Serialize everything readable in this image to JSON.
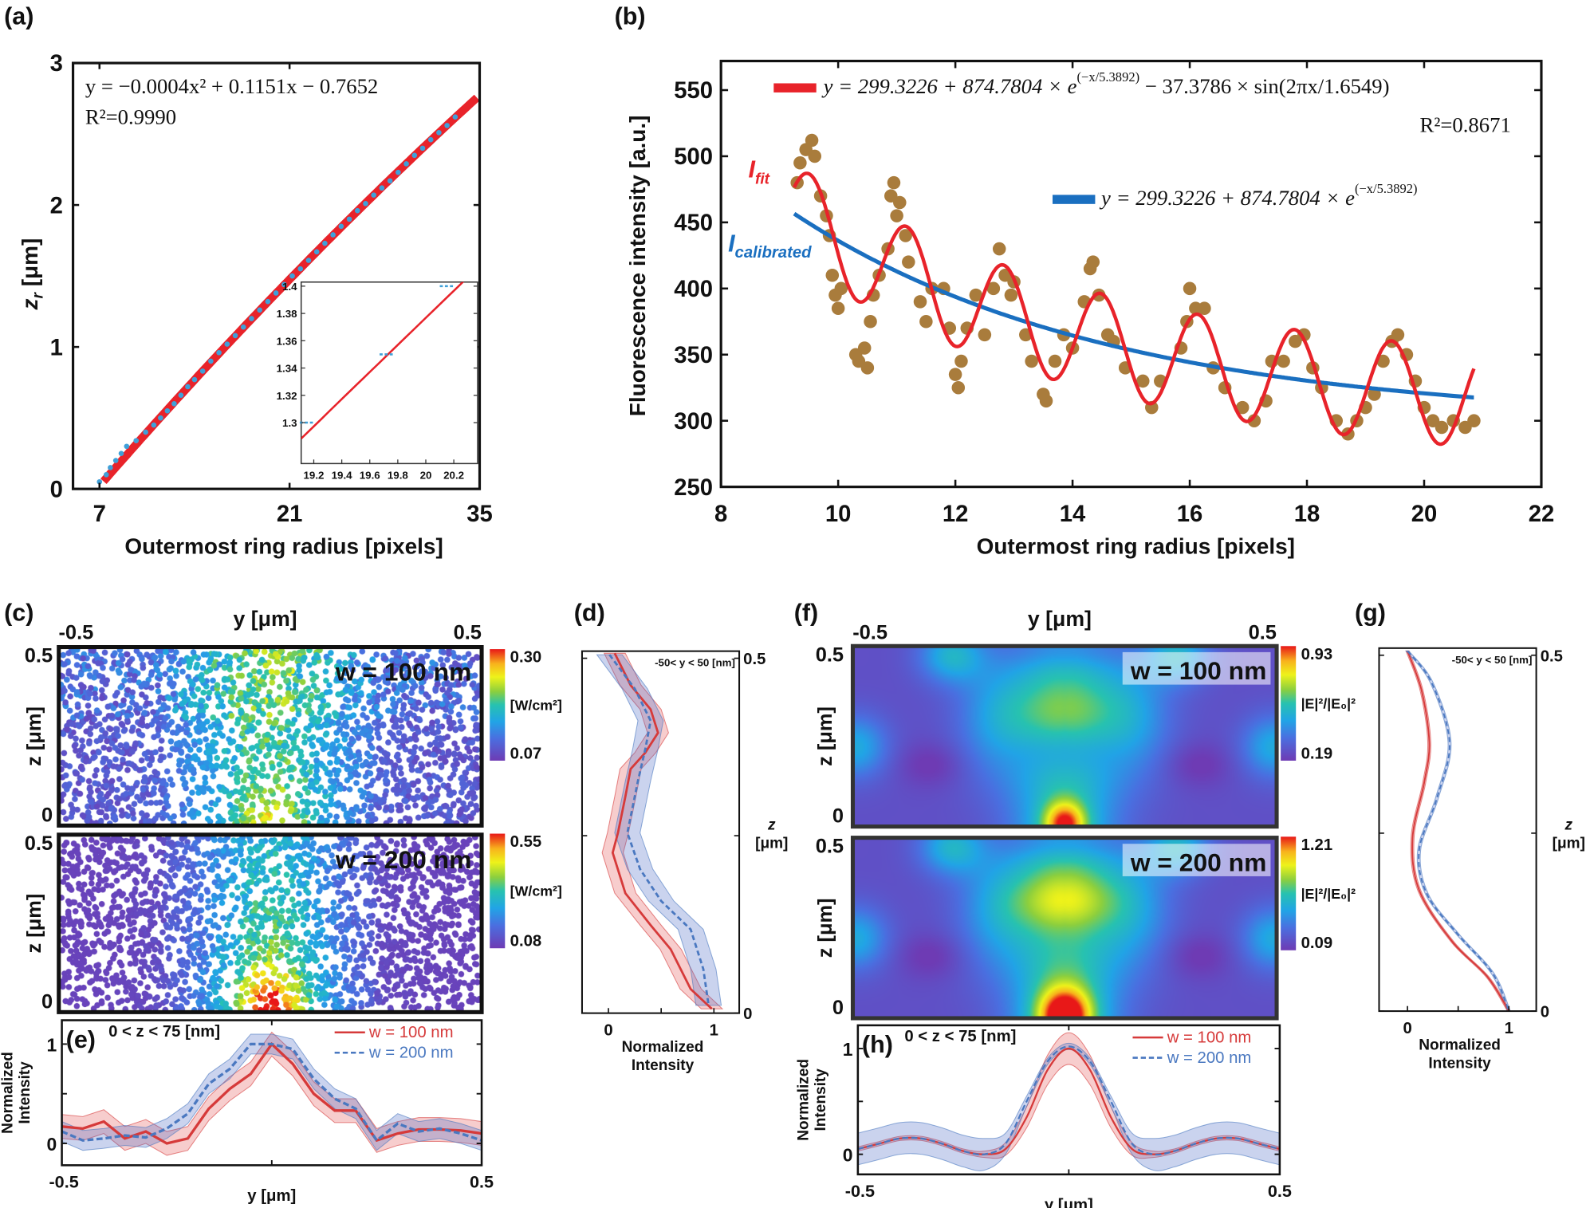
{
  "panel_labels": {
    "a": "(a)",
    "b": "(b)",
    "c": "(c)",
    "d": "(d)",
    "e": "(e)",
    "f": "(f)",
    "g": "(g)",
    "h": "(h)"
  },
  "colors": {
    "fit_red": "#e8232a",
    "data_blue": "#3fa0d8",
    "calibrated_blue": "#1a6fc0",
    "scatter_brown": "#a97c3c",
    "w100_red": "#d63a3a",
    "w200_blue": "#4a78c0"
  },
  "chart_data": [
    {
      "panel": "a",
      "type": "scatter",
      "xlabel": "Outermost ring radius [pixels]",
      "ylabel": "z",
      "ylabel_sub": "r",
      "ylabel_unit": " [μm]",
      "xlim": [
        5.05,
        35
      ],
      "ylim": [
        0,
        3
      ],
      "xticks": [
        7,
        21,
        35
      ],
      "yticks": [
        0,
        1,
        2,
        3
      ],
      "fit": {
        "equation": "y = −0.0004x² + 0.1151x − 0.7652",
        "r2": "R²=0.9990",
        "coefficients": [
          -0.0004,
          0.1151,
          -0.7652
        ],
        "x_range": [
          7.3,
          35
        ]
      },
      "points": {
        "x": [
          7.0,
          7.5,
          7.8,
          8.2,
          8.6,
          9.0,
          9.7,
          10.4,
          11.0,
          11.5,
          12.0,
          12.5,
          13.0,
          13.5,
          14.0,
          14.6,
          15.2,
          15.8,
          16.4,
          17.0,
          17.6,
          18.2,
          18.8,
          19.4,
          20.0,
          20.6,
          21.2,
          21.8,
          22.4,
          23.0,
          23.6,
          24.2,
          24.8,
          25.4,
          26.0,
          26.6,
          27.2,
          27.8,
          28.4,
          29.0,
          29.6,
          30.2,
          30.8,
          31.4,
          32.0,
          32.6,
          33.2
        ],
        "y": [
          0.05,
          0.1,
          0.15,
          0.2,
          0.25,
          0.3,
          0.34,
          0.4,
          0.45,
          0.5,
          0.55,
          0.6,
          0.66,
          0.72,
          0.77,
          0.83,
          0.9,
          0.96,
          1.02,
          1.08,
          1.14,
          1.2,
          1.26,
          1.32,
          1.38,
          1.44,
          1.5,
          1.55,
          1.61,
          1.67,
          1.73,
          1.79,
          1.85,
          1.9,
          1.96,
          2.01,
          2.07,
          2.12,
          2.17,
          2.23,
          2.29,
          2.35,
          2.4,
          2.46,
          2.51,
          2.56,
          2.62
        ]
      },
      "inset": {
        "xlim": [
          19.11,
          20.37
        ],
        "ylim": [
          1.27,
          1.403
        ],
        "xticks": [
          19.2,
          19.4,
          19.6,
          19.8,
          20,
          20.2
        ],
        "yticks": [
          1.3,
          1.32,
          1.34,
          1.36,
          1.38,
          1.4
        ],
        "points": {
          "x": [
            19.15,
            19.72,
            20.15
          ],
          "y": [
            1.3,
            1.35,
            1.4
          ]
        }
      }
    },
    {
      "panel": "b",
      "type": "scatter",
      "xlabel": "Outermost ring radius [pixels]",
      "ylabel": "Fluorescence intensity [a.u.]",
      "xlim": [
        8,
        22
      ],
      "ylim": [
        250,
        572
      ],
      "xticks": [
        8,
        10,
        12,
        14,
        16,
        18,
        20,
        22
      ],
      "yticks": [
        250,
        300,
        350,
        400,
        450,
        500,
        550
      ],
      "fit_label": "I",
      "fit_label_sub": "fit",
      "calibrated_label": "I",
      "calibrated_label_sub": "calibrated",
      "fit": {
        "eq_main": "y = 299.3226 + 874.7804 × e",
        "eq_exp": "(−x/5.3892)",
        "eq_tail": " − 37.3786 × sin(2πx/1.6549)",
        "r2": "R²=0.8671",
        "a": 299.3226,
        "b": 874.7804,
        "tau": 5.3892,
        "c": 37.3786,
        "period": 1.6549,
        "x_range": [
          9.25,
          20.85
        ]
      },
      "calibrated": {
        "eq_main": "y = 299.3226 + 874.7804 × e",
        "eq_exp": "(−x/5.3892)",
        "x_range": [
          9.25,
          20.85
        ]
      },
      "points": [
        [
          9.3,
          480
        ],
        [
          9.35,
          495
        ],
        [
          9.45,
          505
        ],
        [
          9.55,
          512
        ],
        [
          9.6,
          500
        ],
        [
          9.7,
          470
        ],
        [
          9.8,
          455
        ],
        [
          9.85,
          440
        ],
        [
          9.9,
          410
        ],
        [
          9.95,
          395
        ],
        [
          10.0,
          385
        ],
        [
          10.05,
          400
        ],
        [
          10.3,
          350
        ],
        [
          10.35,
          345
        ],
        [
          10.45,
          355
        ],
        [
          10.5,
          340
        ],
        [
          10.55,
          375
        ],
        [
          10.6,
          395
        ],
        [
          10.7,
          410
        ],
        [
          10.85,
          430
        ],
        [
          10.9,
          470
        ],
        [
          10.95,
          480
        ],
        [
          11.0,
          455
        ],
        [
          11.05,
          465
        ],
        [
          11.15,
          440
        ],
        [
          11.2,
          420
        ],
        [
          11.4,
          390
        ],
        [
          11.5,
          375
        ],
        [
          11.6,
          400
        ],
        [
          11.8,
          400
        ],
        [
          11.9,
          370
        ],
        [
          12.0,
          335
        ],
        [
          12.05,
          325
        ],
        [
          12.1,
          345
        ],
        [
          12.2,
          370
        ],
        [
          12.35,
          395
        ],
        [
          12.5,
          365
        ],
        [
          12.65,
          400
        ],
        [
          12.75,
          430
        ],
        [
          12.85,
          410
        ],
        [
          12.95,
          395
        ],
        [
          13.0,
          405
        ],
        [
          13.2,
          365
        ],
        [
          13.3,
          345
        ],
        [
          13.5,
          320
        ],
        [
          13.55,
          315
        ],
        [
          13.7,
          345
        ],
        [
          13.85,
          365
        ],
        [
          14.0,
          355
        ],
        [
          14.2,
          390
        ],
        [
          14.3,
          415
        ],
        [
          14.35,
          420
        ],
        [
          14.45,
          395
        ],
        [
          14.6,
          365
        ],
        [
          14.7,
          360
        ],
        [
          14.9,
          340
        ],
        [
          15.2,
          330
        ],
        [
          15.35,
          310
        ],
        [
          15.5,
          330
        ],
        [
          15.85,
          355
        ],
        [
          15.95,
          375
        ],
        [
          16.0,
          400
        ],
        [
          16.1,
          385
        ],
        [
          16.25,
          385
        ],
        [
          16.4,
          340
        ],
        [
          16.6,
          325
        ],
        [
          16.9,
          310
        ],
        [
          17.1,
          300
        ],
        [
          17.3,
          315
        ],
        [
          17.4,
          345
        ],
        [
          17.6,
          345
        ],
        [
          17.8,
          360
        ],
        [
          17.95,
          365
        ],
        [
          18.1,
          340
        ],
        [
          18.25,
          325
        ],
        [
          18.5,
          300
        ],
        [
          18.7,
          290
        ],
        [
          18.85,
          300
        ],
        [
          19.0,
          310
        ],
        [
          19.15,
          320
        ],
        [
          19.3,
          345
        ],
        [
          19.45,
          360
        ],
        [
          19.55,
          365
        ],
        [
          19.7,
          350
        ],
        [
          19.85,
          330
        ],
        [
          20.0,
          310
        ],
        [
          20.15,
          300
        ],
        [
          20.3,
          295
        ],
        [
          20.5,
          300
        ],
        [
          20.7,
          295
        ],
        [
          20.85,
          300
        ]
      ]
    },
    {
      "panel": "c",
      "type": "scatter",
      "top_label": "y [μm]",
      "xtick_left": "-0.5",
      "xtick_right": "0.5",
      "ylabel": "z [μm]",
      "ytick_top": "0.5",
      "ytick_bottom": "0",
      "maps": [
        {
          "title": "w = 100 nm",
          "colorbar_max": "0.30",
          "colorbar_min": "0.07",
          "colorbar_unit": "[W/cm²]"
        },
        {
          "title": "w = 200 nm",
          "colorbar_max": "0.55",
          "colorbar_min": "0.08",
          "colorbar_unit": "[W/cm²]"
        }
      ]
    },
    {
      "panel": "d",
      "type": "line",
      "annotation": "-50< y < 50 [nm]",
      "xlabel_line1": "Normalized",
      "xlabel_line2": "Intensity",
      "ylabel_line1": "z",
      "ylabel_line2": "[μm]",
      "xlim": [
        -0.25,
        1.24
      ],
      "ylim": [
        0,
        0.51
      ],
      "xticks": [
        0,
        1
      ],
      "yticks": [
        0,
        0.5
      ],
      "series": [
        {
          "name": "w = 100 nm",
          "z": [
            0.507,
            0.462,
            0.428,
            0.395,
            0.367,
            0.344,
            0.305,
            0.254,
            0.226,
            0.169,
            0.124,
            0.09,
            0.034,
            0.006
          ],
          "intensity": [
            0.06,
            0.21,
            0.4,
            0.47,
            0.35,
            0.21,
            0.16,
            0.09,
            0.04,
            0.16,
            0.4,
            0.59,
            0.78,
            0.98
          ],
          "band": 0.1
        },
        {
          "name": "w = 200 nm",
          "z": [
            0.505,
            0.457,
            0.412,
            0.372,
            0.327,
            0.254,
            0.203,
            0.158,
            0.118,
            0.062,
            0.011
          ],
          "intensity": [
            0.01,
            0.25,
            0.4,
            0.35,
            0.28,
            0.18,
            0.3,
            0.5,
            0.78,
            0.9,
            0.95
          ],
          "band": 0.12
        }
      ]
    },
    {
      "panel": "e",
      "type": "line",
      "annotation": "0 < z < 75 [nm]",
      "xlabel": "y [μm]",
      "ylabel_line1": "Normalized",
      "ylabel_line2": "Intensity",
      "xlim": [
        -0.5,
        0.5
      ],
      "ylim": [
        -0.22,
        1.24
      ],
      "xtick_labels": [
        "-0.5",
        "0.5"
      ],
      "yticks": [
        0,
        1
      ],
      "x": [
        -0.5,
        -0.45,
        -0.4,
        -0.35,
        -0.3,
        -0.25,
        -0.2,
        -0.15,
        -0.1,
        -0.05,
        0,
        0.05,
        0.1,
        0.15,
        0.2,
        0.25,
        0.3,
        0.35,
        0.4,
        0.45,
        0.5
      ],
      "series": [
        {
          "name": "w = 100 nm",
          "values": [
            0.17,
            0.15,
            0.22,
            0.05,
            0.12,
            0.0,
            0.05,
            0.35,
            0.55,
            0.7,
            1.0,
            0.8,
            0.5,
            0.33,
            0.33,
            0.03,
            0.1,
            0.14,
            0.14,
            0.13,
            0.1
          ],
          "band": 0.12
        },
        {
          "name": "w = 200 nm",
          "values": [
            0.12,
            0.03,
            0.05,
            0.08,
            0.06,
            0.15,
            0.3,
            0.6,
            0.75,
            1.0,
            1.0,
            0.95,
            0.65,
            0.45,
            0.35,
            0.03,
            0.2,
            0.12,
            0.15,
            0.1,
            0.03
          ],
          "band": 0.1
        }
      ]
    },
    {
      "panel": "f",
      "type": "heatmap",
      "top_label": "y [μm]",
      "xtick_left": "-0.5",
      "xtick_right": "0.5",
      "ylabel": "z [μm]",
      "ytick_top": "0.5",
      "ytick_bottom": "0",
      "maps": [
        {
          "title": "w = 100 nm",
          "colorbar_max": "0.93",
          "colorbar_min": "0.19",
          "colorbar_unit": "|E|²/|E₀|²"
        },
        {
          "title": "w = 200 nm",
          "colorbar_max": "1.21",
          "colorbar_min": "0.09",
          "colorbar_unit": "|E|²/|E₀|²"
        }
      ]
    },
    {
      "panel": "g",
      "type": "line",
      "annotation": "-50< y < 50 [nm]",
      "xlabel_line1": "Normalized",
      "xlabel_line2": "Intensity",
      "ylabel_line1": "z",
      "ylabel_line2": "[μm]",
      "xlim": [
        -0.28,
        1.27
      ],
      "ylim": [
        0,
        0.51
      ],
      "xticks": [
        0,
        1
      ],
      "yticks": [
        0,
        0.5
      ],
      "series": [
        {
          "name": "w = 100 nm",
          "z": [
            0.506,
            0.45,
            0.377,
            0.321,
            0.243,
            0.17,
            0.098,
            0.048,
            0.0
          ],
          "intensity": [
            0,
            0.14,
            0.215,
            0.165,
            0.05,
            0.115,
            0.44,
            0.79,
            1.0
          ]
        },
        {
          "name": "w = 200 nm",
          "z": [
            0.506,
            0.461,
            0.377,
            0.299,
            0.226,
            0.165,
            0.109,
            0.053,
            0.0
          ],
          "intensity": [
            0,
            0.24,
            0.415,
            0.29,
            0.115,
            0.19,
            0.49,
            0.84,
            1.0
          ]
        }
      ]
    },
    {
      "panel": "h",
      "type": "line",
      "annotation": "0 < z < 75 [nm]",
      "xlabel": "y [μm]",
      "ylabel_line1": "Normalized",
      "ylabel_line2": "Intensity",
      "xlim": [
        -0.5,
        0.5
      ],
      "ylim": [
        -0.19,
        1.22
      ],
      "xtick_labels": [
        "-0.5",
        "0.5"
      ],
      "yticks": [
        0,
        1
      ],
      "x": [
        -0.5,
        -0.45,
        -0.4,
        -0.35,
        -0.3,
        -0.25,
        -0.2,
        -0.15,
        -0.1,
        -0.05,
        0,
        0.05,
        0.1,
        0.15,
        0.2,
        0.25,
        0.3,
        0.35,
        0.4,
        0.45,
        0.5
      ],
      "series": [
        {
          "name": "w = 100 nm",
          "values": [
            0.05,
            0.1,
            0.15,
            0.15,
            0.1,
            0.03,
            0.0,
            0.05,
            0.35,
            0.8,
            1.0,
            0.8,
            0.35,
            0.05,
            0.0,
            0.03,
            0.1,
            0.15,
            0.15,
            0.1,
            0.05
          ],
          "band": [
            0.02,
            0.02,
            0.02,
            0.02,
            0.02,
            0.02,
            0.03,
            0.06,
            0.1,
            0.14,
            0.15,
            0.14,
            0.1,
            0.06,
            0.03,
            0.02,
            0.02,
            0.02,
            0.02,
            0.02,
            0.02
          ]
        },
        {
          "name": "w = 200 nm",
          "values": [
            0.05,
            0.1,
            0.15,
            0.15,
            0.1,
            0.03,
            0.0,
            0.1,
            0.5,
            0.88,
            1.02,
            0.88,
            0.5,
            0.1,
            0.0,
            0.03,
            0.1,
            0.15,
            0.15,
            0.1,
            0.05
          ],
          "band": [
            0.15,
            0.15,
            0.15,
            0.15,
            0.15,
            0.15,
            0.15,
            0.1,
            0.05,
            0.03,
            0.03,
            0.03,
            0.05,
            0.1,
            0.15,
            0.15,
            0.15,
            0.15,
            0.15,
            0.15,
            0.15
          ]
        }
      ]
    }
  ]
}
